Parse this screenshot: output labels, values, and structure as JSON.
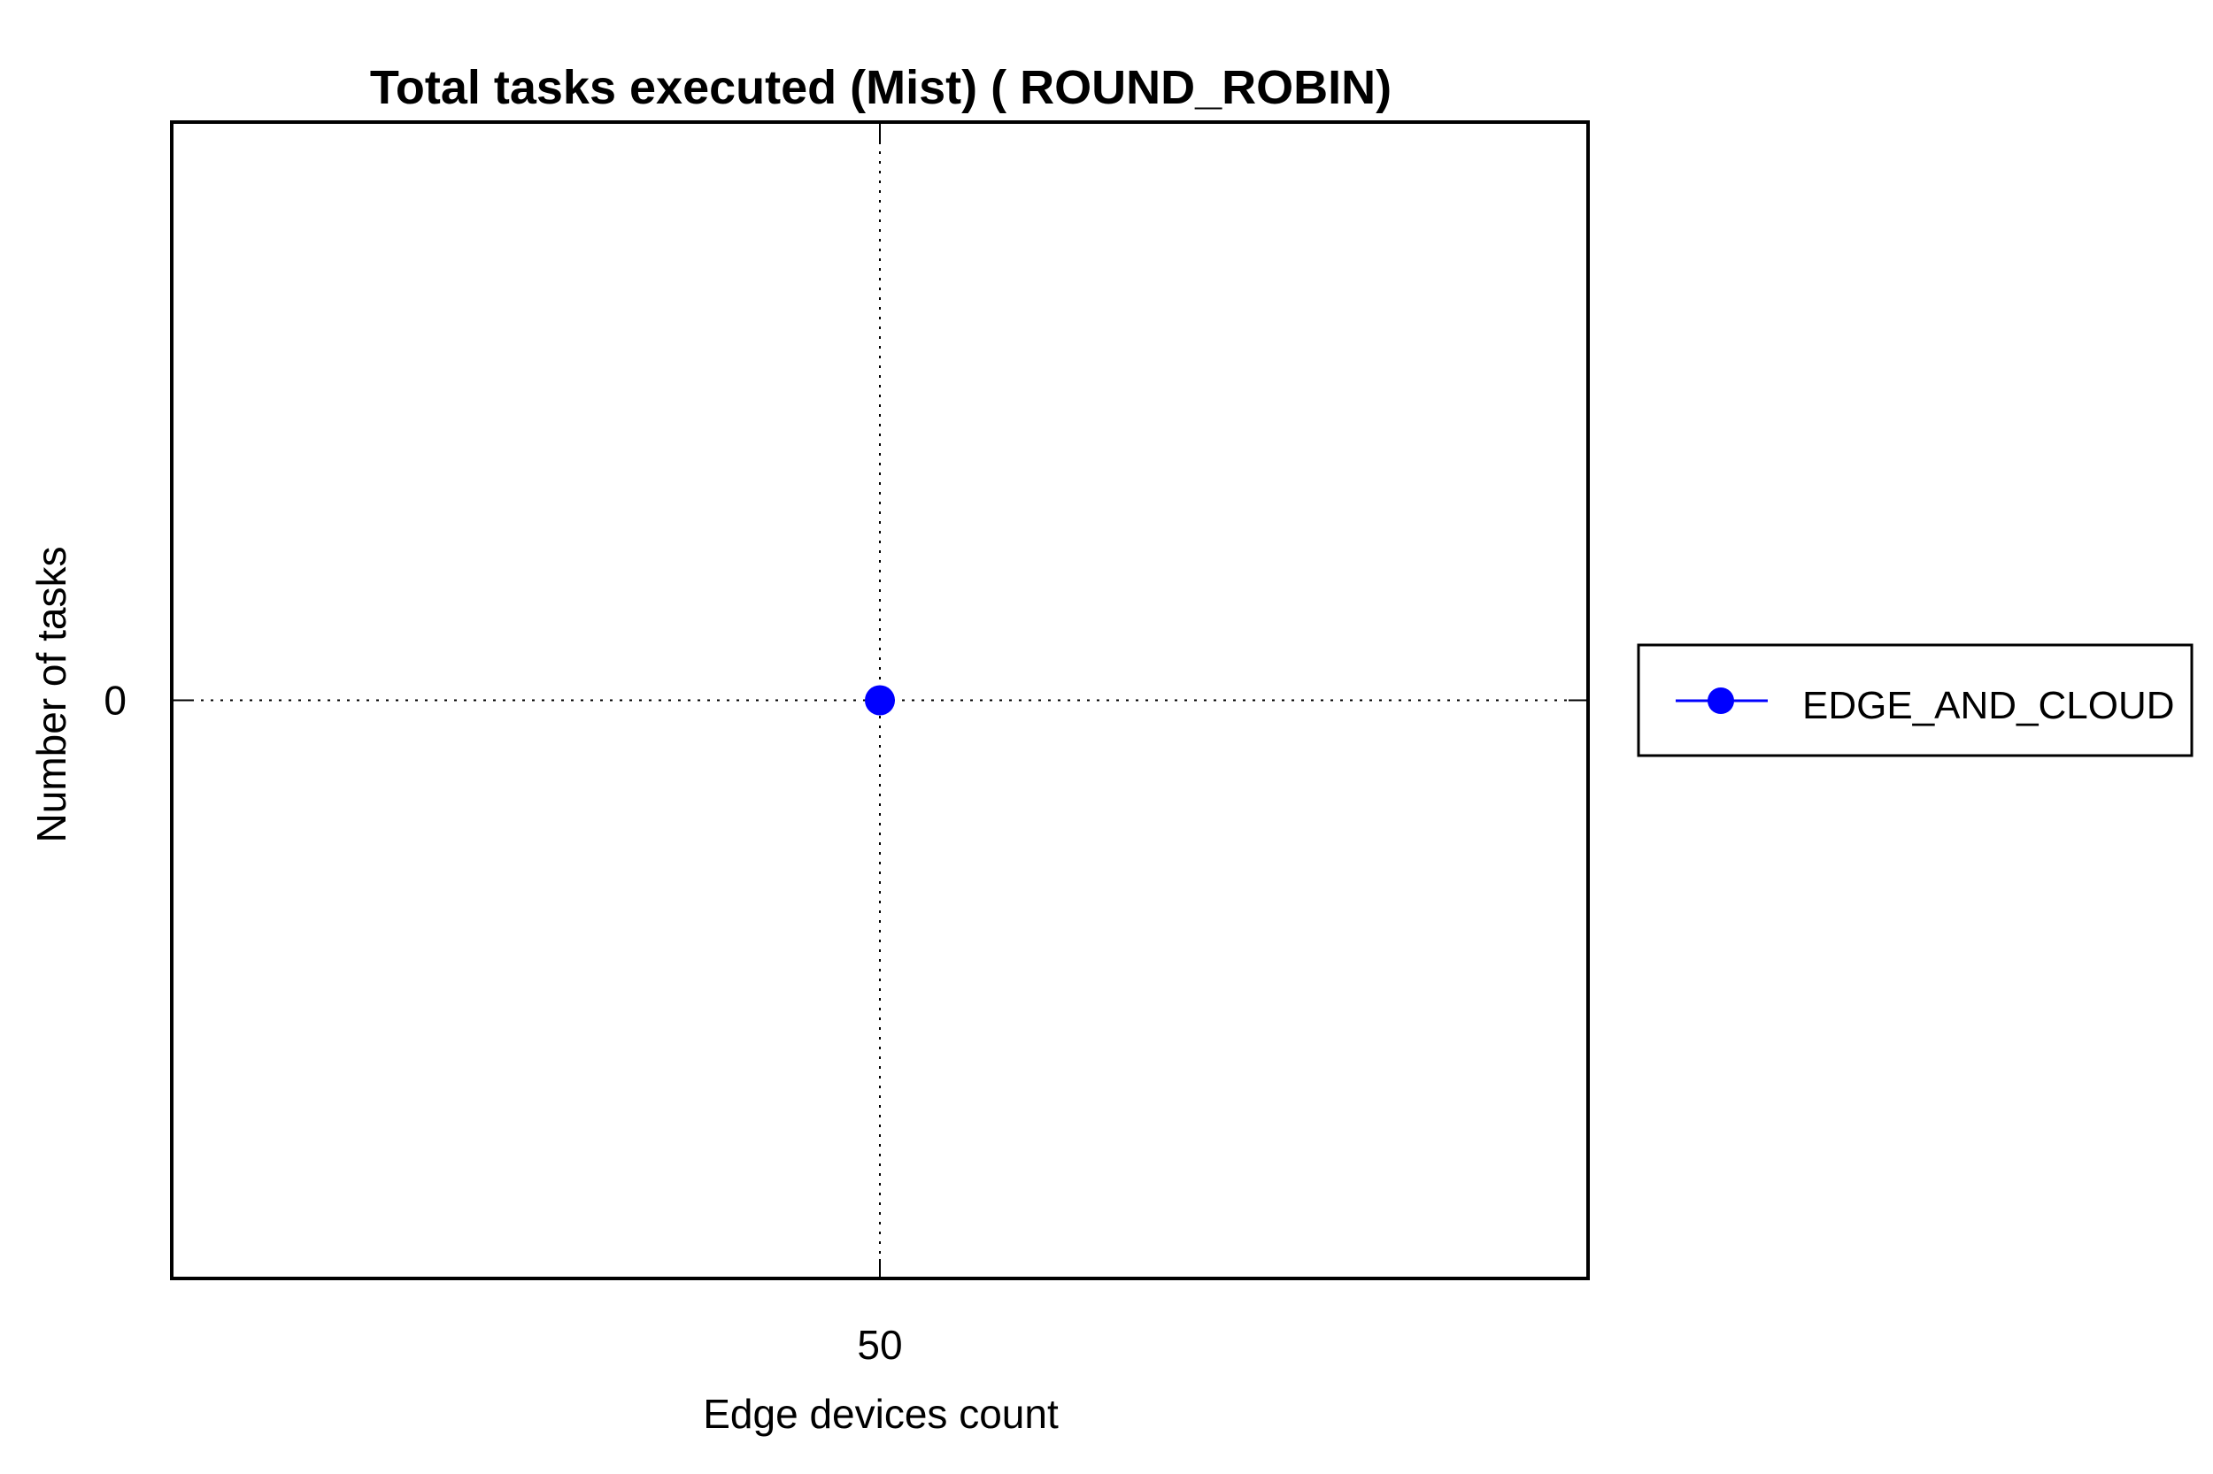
{
  "chart_data": {
    "type": "line",
    "title": "Total tasks executed (Mist) ( ROUND_ROBIN)",
    "xlabel": "Edge devices count",
    "ylabel": "Number of tasks",
    "x": [
      50
    ],
    "x_tick_labels": [
      "50"
    ],
    "y_tick_labels": [
      "0"
    ],
    "series": [
      {
        "name": "EDGE_AND_CLOUD",
        "values": [
          0
        ],
        "color": "#0000ff",
        "marker": "circle"
      }
    ],
    "grid": true,
    "grid_style": "dotted",
    "legend_position": "outside-right"
  }
}
